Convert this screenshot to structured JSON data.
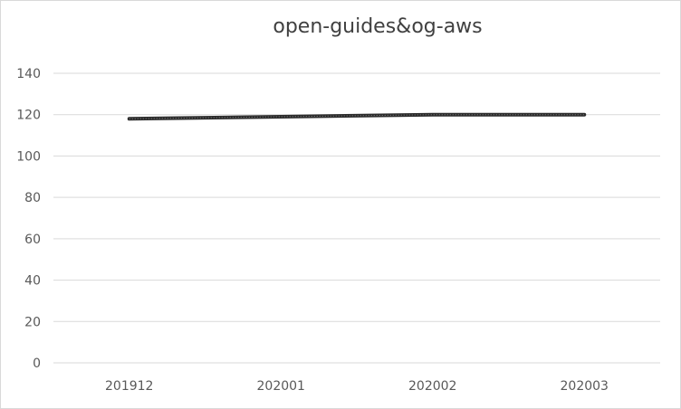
{
  "chart_data": {
    "type": "line",
    "title": "open-guides&og-aws",
    "categories": [
      "201912",
      "202001",
      "202002",
      "202003"
    ],
    "series": [
      {
        "values": [
          118,
          119,
          120,
          120
        ]
      }
    ],
    "ylim": [
      0,
      140
    ],
    "yticks": [
      0,
      20,
      40,
      60,
      80,
      100,
      120,
      140
    ],
    "grid": true,
    "legend": "none",
    "colors": {
      "line": "#2b2b2b",
      "grid": "#d9d9d9",
      "tick_text": "#595959"
    }
  }
}
